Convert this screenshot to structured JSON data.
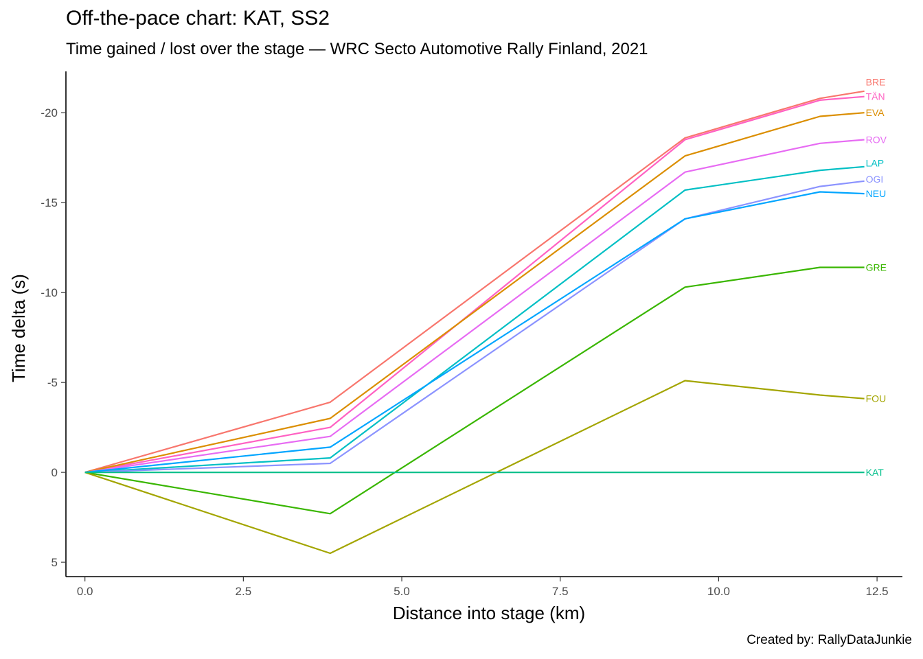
{
  "chart_data": {
    "type": "line",
    "title": "Off-the-pace chart: KAT, SS2",
    "subtitle": "Time gained / lost over the stage — WRC Secto Automotive Rally Finland, 2021",
    "caption": "Created by: RallyDataJunkie",
    "xlabel": "Distance into stage (km)",
    "ylabel": "Time delta (s)",
    "xlim": [
      -0.3,
      12.9
    ],
    "ylim": [
      5.8,
      -22.3
    ],
    "y_reversed": true,
    "x_ticks": [
      {
        "value": 0,
        "label": "0.0"
      },
      {
        "value": 2.5,
        "label": "2.5"
      },
      {
        "value": 5,
        "label": "5.0"
      },
      {
        "value": 7.5,
        "label": "7.5"
      },
      {
        "value": 10,
        "label": "10.0"
      },
      {
        "value": 12.5,
        "label": "12.5"
      }
    ],
    "y_ticks": [
      {
        "value": -20,
        "label": "-20"
      },
      {
        "value": -15,
        "label": "-15"
      },
      {
        "value": -10,
        "label": "-10"
      },
      {
        "value": -5,
        "label": "-5"
      },
      {
        "value": 0,
        "label": "0"
      },
      {
        "value": 5,
        "label": "5"
      }
    ],
    "grid": false,
    "legend": "none",
    "x": [
      0,
      3.87,
      9.47,
      11.6,
      12.3
    ],
    "series": [
      {
        "name": "BRE",
        "color": "#F8766D",
        "values": [
          0,
          -3.9,
          -18.6,
          -20.8,
          -21.2
        ]
      },
      {
        "name": "TÄN",
        "color": "#FF61C3",
        "values": [
          0,
          -2.5,
          -18.5,
          -20.7,
          -20.9
        ]
      },
      {
        "name": "EVA",
        "color": "#DB8E00",
        "values": [
          0,
          -3.0,
          -17.6,
          -19.8,
          -20.0
        ]
      },
      {
        "name": "ROV",
        "color": "#E76BF3",
        "values": [
          0,
          -2.0,
          -16.7,
          -18.3,
          -18.5
        ]
      },
      {
        "name": "LAP",
        "color": "#00BFC4",
        "values": [
          0,
          -0.8,
          -15.7,
          -16.8,
          -17.0
        ]
      },
      {
        "name": "OGI",
        "color": "#8B93FF",
        "values": [
          0,
          -0.5,
          -14.1,
          -15.9,
          -16.2
        ]
      },
      {
        "name": "NEU",
        "color": "#00A5FF",
        "values": [
          0,
          -1.4,
          -14.1,
          -15.6,
          -15.5
        ]
      },
      {
        "name": "GRE",
        "color": "#39B600",
        "values": [
          0,
          2.3,
          -10.3,
          -11.4,
          -11.4
        ]
      },
      {
        "name": "FOU",
        "color": "#A3A500",
        "values": [
          0,
          4.5,
          -5.1,
          -4.3,
          -4.1
        ]
      },
      {
        "name": "KAT",
        "color": "#00C08B",
        "values": [
          0,
          0,
          0,
          0,
          0
        ]
      }
    ],
    "label_y": {
      "BRE": -21.7,
      "TÄN": -20.9,
      "EVA": -20.0,
      "ROV": -18.5,
      "LAP": -17.2,
      "OGI": -16.3,
      "NEU": -15.5,
      "GRE": -11.4,
      "FOU": -4.1,
      "KAT": 0
    }
  }
}
